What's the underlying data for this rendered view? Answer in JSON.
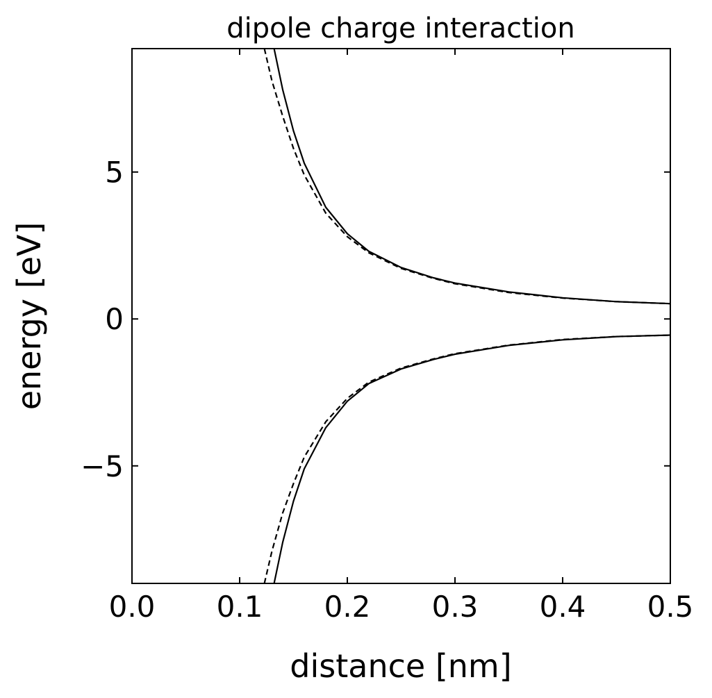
{
  "chart_data": {
    "type": "line",
    "title": "dipole charge interaction",
    "xlabel": "distance [nm]",
    "ylabel": "energy [eV]",
    "xlim": [
      0.0,
      0.5
    ],
    "ylim": [
      -9.0,
      9.2
    ],
    "xticks": [
      0.0,
      0.1,
      0.2,
      0.3,
      0.4,
      0.5
    ],
    "xtick_labels": [
      "0.0",
      "0.1",
      "0.2",
      "0.3",
      "0.4",
      "0.5"
    ],
    "yticks": [
      -5,
      0,
      5
    ],
    "ytick_labels": [
      "−5",
      "0",
      "5"
    ],
    "tick_direction": "in",
    "grid": false,
    "legend": "none",
    "series": [
      {
        "style": "solid",
        "color": "#000000",
        "x": [
          0.132,
          0.14,
          0.15,
          0.16,
          0.18,
          0.2,
          0.22,
          0.25,
          0.28,
          0.3,
          0.35,
          0.4,
          0.45,
          0.5
        ],
        "y": [
          9.2,
          7.8,
          6.4,
          5.3,
          3.8,
          2.9,
          2.3,
          1.75,
          1.4,
          1.22,
          0.92,
          0.72,
          0.59,
          0.52
        ]
      },
      {
        "style": "dashed",
        "color": "#000000",
        "x": [
          0.123,
          0.13,
          0.14,
          0.15,
          0.16,
          0.18,
          0.2,
          0.22,
          0.25,
          0.28,
          0.3,
          0.35,
          0.4,
          0.45,
          0.5
        ],
        "y": [
          9.2,
          8.1,
          6.9,
          5.8,
          4.9,
          3.6,
          2.8,
          2.25,
          1.72,
          1.38,
          1.2,
          0.9,
          0.71,
          0.59,
          0.52
        ]
      },
      {
        "style": "solid",
        "color": "#000000",
        "x": [
          0.132,
          0.14,
          0.15,
          0.16,
          0.18,
          0.2,
          0.22,
          0.25,
          0.28,
          0.3,
          0.35,
          0.4,
          0.45,
          0.5
        ],
        "y": [
          -9.0,
          -7.6,
          -6.2,
          -5.1,
          -3.7,
          -2.8,
          -2.2,
          -1.7,
          -1.38,
          -1.2,
          -0.9,
          -0.71,
          -0.6,
          -0.55
        ]
      },
      {
        "style": "dashed",
        "color": "#000000",
        "x": [
          0.123,
          0.13,
          0.14,
          0.15,
          0.16,
          0.18,
          0.2,
          0.22,
          0.25,
          0.28,
          0.3,
          0.35,
          0.4,
          0.45,
          0.5
        ],
        "y": [
          -9.0,
          -7.9,
          -6.6,
          -5.6,
          -4.7,
          -3.5,
          -2.7,
          -2.15,
          -1.67,
          -1.36,
          -1.18,
          -0.89,
          -0.7,
          -0.6,
          -0.55
        ]
      }
    ]
  }
}
